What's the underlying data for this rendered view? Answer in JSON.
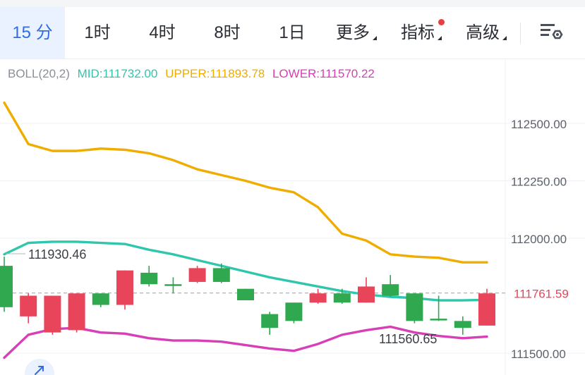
{
  "tabs": [
    {
      "label": "15 分",
      "active": true
    },
    {
      "label": "1时"
    },
    {
      "label": "4时"
    },
    {
      "label": "8时"
    },
    {
      "label": "1日"
    },
    {
      "label": "更多"
    },
    {
      "label": "指标"
    },
    {
      "label": "高级"
    }
  ],
  "settings_icon": "chart-settings-icon",
  "legend": {
    "name": "BOLL(20,2)",
    "mid": "MID:111732.00",
    "upper": "UPPER:111893.78",
    "lower": "LOWER:111570.22"
  },
  "colors": {
    "up": "#2fa84f",
    "down": "#e8445a",
    "mid": "#2ec7ad",
    "upper": "#f0ad00",
    "lower": "#d63fb5",
    "active_tab": "#2f6de1"
  },
  "chart_data": {
    "type": "candlestick",
    "y_ticks": [
      "112500.00",
      "112250.00",
      "112000.00",
      "111500.00"
    ],
    "y_ticks_values": [
      112500,
      112250,
      112000,
      111500
    ],
    "current_price": 111761.59,
    "current_price_label": "111761.59",
    "annotations": [
      {
        "text": "111930.46",
        "value": 111930.46
      },
      {
        "text": "111560.65",
        "value": 111560.65
      }
    ],
    "candles": [
      {
        "open": 111700,
        "close": 111880,
        "high": 111920,
        "low": 111680
      },
      {
        "open": 111750,
        "close": 111660,
        "high": 111760,
        "low": 111630
      },
      {
        "open": 111750,
        "close": 111590,
        "high": 111750,
        "low": 111580
      },
      {
        "open": 111760,
        "close": 111600,
        "high": 111760,
        "low": 111590
      },
      {
        "open": 111710,
        "close": 111760,
        "high": 111760,
        "low": 111700
      },
      {
        "open": 111860,
        "close": 111710,
        "high": 111860,
        "low": 111690
      },
      {
        "open": 111800,
        "close": 111850,
        "high": 111880,
        "low": 111790
      },
      {
        "open": 111800,
        "close": 111800,
        "high": 111830,
        "low": 111760
      },
      {
        "open": 111870,
        "close": 111810,
        "high": 111880,
        "low": 111805
      },
      {
        "open": 111810,
        "close": 111870,
        "high": 111890,
        "low": 111805
      },
      {
        "open": 111730,
        "close": 111780,
        "high": 111780,
        "low": 111730
      },
      {
        "open": 111610,
        "close": 111670,
        "high": 111680,
        "low": 111580
      },
      {
        "open": 111640,
        "close": 111720,
        "high": 111720,
        "low": 111630
      },
      {
        "open": 111760,
        "close": 111720,
        "high": 111780,
        "low": 111715
      },
      {
        "open": 111720,
        "close": 111760,
        "high": 111780,
        "low": 111715
      },
      {
        "open": 111790,
        "close": 111720,
        "high": 111830,
        "low": 111720
      },
      {
        "open": 111750,
        "close": 111800,
        "high": 111840,
        "low": 111745
      },
      {
        "open": 111640,
        "close": 111760,
        "high": 111760,
        "low": 111630
      },
      {
        "open": 111650,
        "close": 111650,
        "high": 111750,
        "low": 111640
      },
      {
        "open": 111610,
        "close": 111640,
        "high": 111660,
        "low": 111580
      },
      {
        "open": 111760,
        "close": 111620,
        "high": 111780,
        "low": 111620
      }
    ],
    "upper": [
      112590,
      112410,
      112380,
      112380,
      112390,
      112385,
      112370,
      112340,
      112300,
      112275,
      112250,
      112220,
      112200,
      112135,
      112020,
      111990,
      111930,
      111920,
      111915,
      111895,
      111895
    ],
    "mid": [
      111930,
      111980,
      111985,
      111985,
      111980,
      111975,
      111950,
      111930,
      111905,
      111880,
      111855,
      111830,
      111810,
      111790,
      111770,
      111755,
      111745,
      111740,
      111730,
      111730,
      111732
    ],
    "lower": [
      111480,
      111580,
      111605,
      111610,
      111590,
      111585,
      111565,
      111555,
      111555,
      111550,
      111535,
      111520,
      111510,
      111540,
      111580,
      111600,
      111615,
      111590,
      111575,
      111565,
      111572
    ]
  }
}
